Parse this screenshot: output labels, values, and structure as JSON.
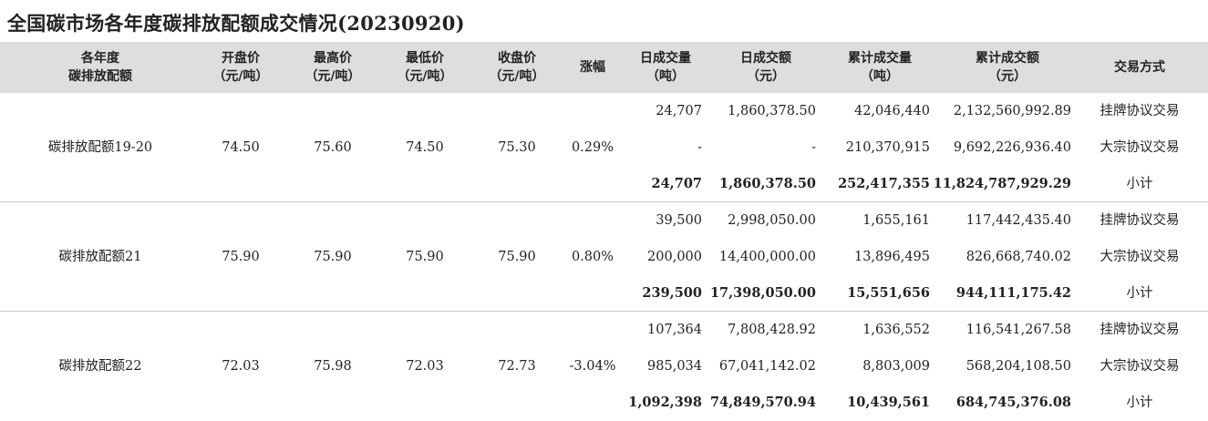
{
  "title": "全国碳市场各年度碳排放配额成交情况(20230920)",
  "columns": [
    {
      "line1": "各年度",
      "line2": "碳排放配额"
    },
    {
      "line1": "开盘价",
      "line2": "（元/吨）"
    },
    {
      "line1": "最高价",
      "line2": "（元/吨）"
    },
    {
      "line1": "最低价",
      "line2": "（元/吨）"
    },
    {
      "line1": "收盘价",
      "line2": "（元/吨）"
    },
    {
      "line1": "涨幅",
      "line2": ""
    },
    {
      "line1": "日成交量",
      "line2": "（吨）"
    },
    {
      "line1": "日成交额",
      "line2": "（元）"
    },
    {
      "line1": "累计成交量",
      "line2": "（吨）"
    },
    {
      "line1": "累计成交额",
      "line2": "（元）"
    },
    {
      "line1": "交易方式",
      "line2": ""
    }
  ],
  "groups": [
    {
      "name": "碳排放配额19-20",
      "open": "74.50",
      "high": "75.60",
      "low": "74.50",
      "close": "75.30",
      "change": "0.29%",
      "rows": [
        {
          "day_volume": "24,707",
          "day_amount": "1,860,378.50",
          "cum_volume": "42,046,440",
          "cum_amount": "2,132,560,992.89",
          "method": "挂牌协议交易"
        },
        {
          "day_volume": "-",
          "day_amount": "-",
          "cum_volume": "210,370,915",
          "cum_amount": "9,692,226,936.40",
          "method": "大宗协议交易"
        },
        {
          "day_volume": "24,707",
          "day_amount": "1,860,378.50",
          "cum_volume": "252,417,355",
          "cum_amount": "11,824,787,929.29",
          "method": "小计"
        }
      ]
    },
    {
      "name": "碳排放配额21",
      "open": "75.90",
      "high": "75.90",
      "low": "75.90",
      "close": "75.90",
      "change": "0.80%",
      "rows": [
        {
          "day_volume": "39,500",
          "day_amount": "2,998,050.00",
          "cum_volume": "1,655,161",
          "cum_amount": "117,442,435.40",
          "method": "挂牌协议交易"
        },
        {
          "day_volume": "200,000",
          "day_amount": "14,400,000.00",
          "cum_volume": "13,896,495",
          "cum_amount": "826,668,740.02",
          "method": "大宗协议交易"
        },
        {
          "day_volume": "239,500",
          "day_amount": "17,398,050.00",
          "cum_volume": "15,551,656",
          "cum_amount": "944,111,175.42",
          "method": "小计"
        }
      ]
    },
    {
      "name": "碳排放配额22",
      "open": "72.03",
      "high": "75.98",
      "low": "72.03",
      "close": "72.73",
      "change": "-3.04%",
      "rows": [
        {
          "day_volume": "107,364",
          "day_amount": "7,808,428.92",
          "cum_volume": "1,636,552",
          "cum_amount": "116,541,267.58",
          "method": "挂牌协议交易"
        },
        {
          "day_volume": "985,034",
          "day_amount": "67,041,142.02",
          "cum_volume": "8,803,009",
          "cum_amount": "568,204,108.50",
          "method": "大宗协议交易"
        },
        {
          "day_volume": "1,092,398",
          "day_amount": "74,849,570.94",
          "cum_volume": "10,439,561",
          "cum_amount": "684,745,376.08",
          "method": "小计"
        }
      ]
    }
  ]
}
